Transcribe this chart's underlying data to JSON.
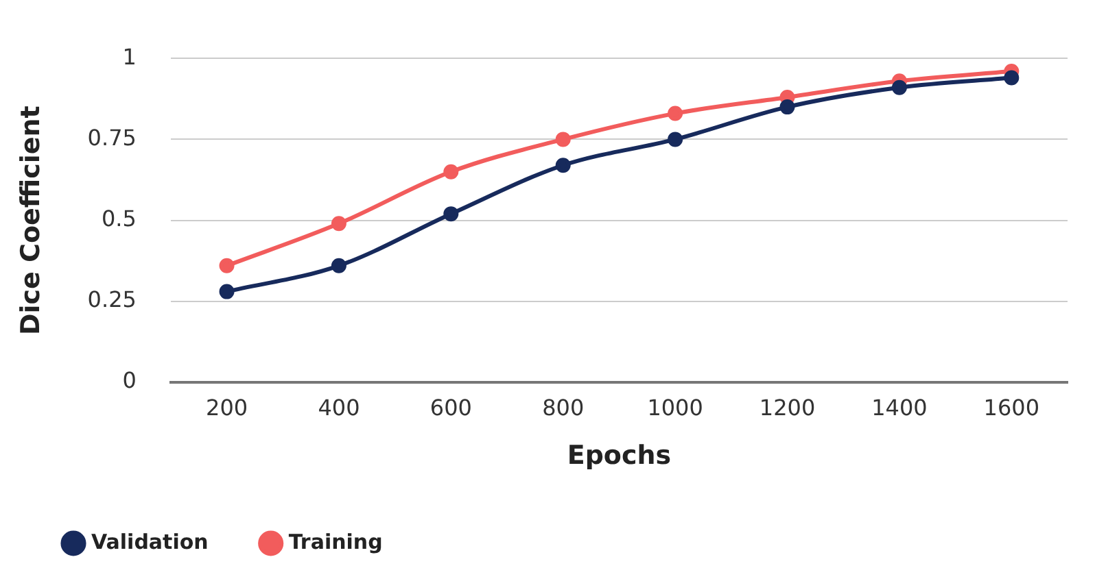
{
  "chart_data": {
    "type": "line",
    "xlabel": "Epochs",
    "ylabel": "Dice Coefficient",
    "categories": [
      "200",
      "400",
      "600",
      "800",
      "1000",
      "1200",
      "1400",
      "1600"
    ],
    "series": [
      {
        "name": "Validation",
        "color": "#172a5c",
        "values": [
          0.28,
          0.36,
          0.52,
          0.67,
          0.75,
          0.85,
          0.91,
          0.94
        ]
      },
      {
        "name": "Training",
        "color": "#f25c5c",
        "values": [
          0.36,
          0.49,
          0.65,
          0.75,
          0.83,
          0.88,
          0.93,
          0.96
        ]
      }
    ],
    "ylim": [
      0,
      1
    ],
    "yticks": [
      0,
      0.25,
      0.5,
      0.75,
      1
    ],
    "grid": "y",
    "legend": "bottom left",
    "marker": "circle",
    "line_style": "solid"
  }
}
